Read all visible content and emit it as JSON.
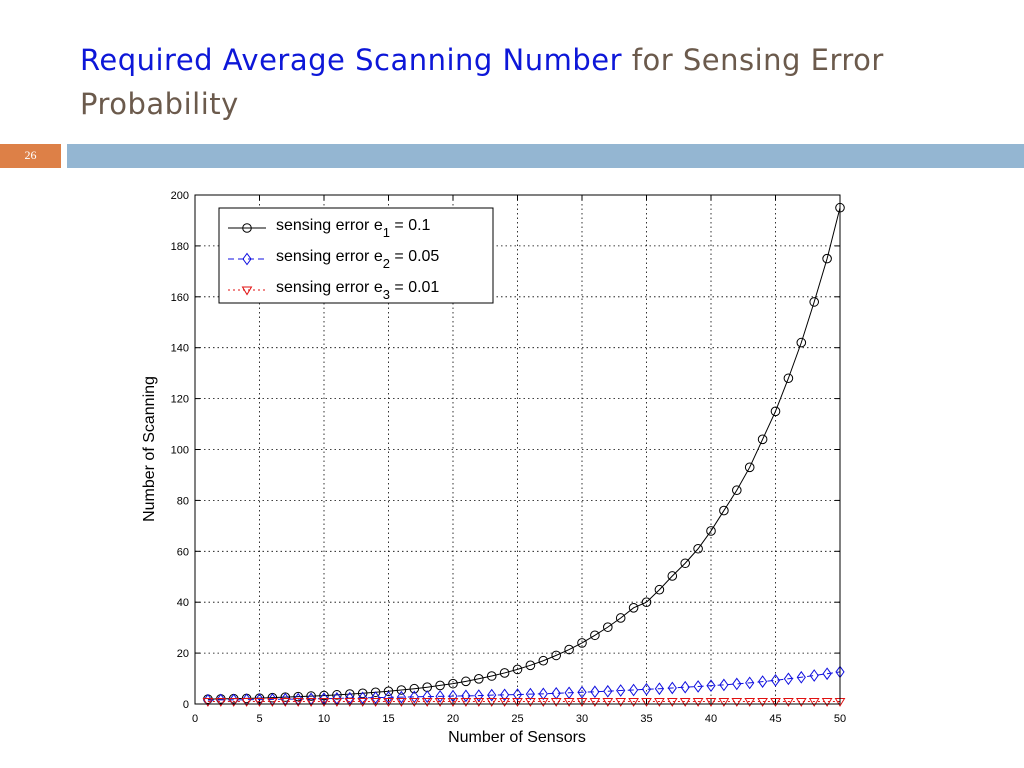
{
  "slide": {
    "title_part1": "Required Average Scanning Number",
    "title_part2": "for Sensing Error Probability",
    "slide_number": "26",
    "colors": {
      "title_blue": "#0d17d8",
      "title_gray": "#6b5a4c",
      "number_box": "#dd8047",
      "accent_bar": "#94b6d2"
    }
  },
  "chart_data": {
    "type": "line",
    "title": "",
    "xlabel": "Number of Sensors",
    "ylabel": "Number of Scanning",
    "xlim": [
      0,
      50
    ],
    "ylim": [
      0,
      200
    ],
    "xticks": [
      0,
      5,
      10,
      15,
      20,
      25,
      30,
      35,
      40,
      45,
      50
    ],
    "yticks": [
      0,
      20,
      40,
      60,
      80,
      100,
      120,
      140,
      160,
      180,
      200
    ],
    "grid": true,
    "legend_position": "top-left",
    "x": [
      1,
      2,
      3,
      4,
      5,
      6,
      7,
      8,
      9,
      10,
      11,
      12,
      13,
      14,
      15,
      16,
      17,
      18,
      19,
      20,
      21,
      22,
      23,
      24,
      25,
      26,
      27,
      28,
      29,
      30,
      31,
      32,
      33,
      34,
      35,
      36,
      37,
      38,
      39,
      40,
      41,
      42,
      43,
      44,
      45,
      46,
      47,
      48,
      49,
      50
    ],
    "series": [
      {
        "name": "sensing error e1 = 0.1",
        "label_prefix": "sensing error e",
        "label_sub": "1",
        "label_suffix": " = 0.1",
        "color": "#000000",
        "marker": "circle",
        "dash": "",
        "values": [
          1.9,
          2.0,
          2.1,
          2.2,
          2.3,
          2.5,
          2.7,
          2.9,
          3.1,
          3.3,
          3.6,
          3.9,
          4.2,
          4.6,
          5.0,
          5.5,
          6.0,
          6.6,
          7.3,
          8.0,
          8.9,
          9.9,
          11.0,
          12.2,
          13.6,
          15.2,
          17.0,
          19.1,
          21.4,
          24.0,
          27.0,
          30.2,
          33.8,
          37.8,
          40.0,
          44.9,
          50.3,
          55.3,
          61.0,
          68.0,
          76.0,
          84.0,
          93.0,
          104.0,
          115.0,
          128.0,
          142.0,
          158.0,
          175.0,
          195.0
        ]
      },
      {
        "name": "sensing error e2 = 0.05",
        "label_prefix": "sensing error e",
        "label_sub": "2",
        "label_suffix": " = 0.05",
        "color": "#1010e0",
        "marker": "diamond",
        "dash": "6,4",
        "values": [
          1.5,
          1.6,
          1.6,
          1.7,
          1.7,
          1.8,
          1.9,
          1.9,
          2.0,
          2.1,
          2.2,
          2.3,
          2.4,
          2.5,
          2.6,
          2.7,
          2.8,
          2.9,
          3.0,
          3.1,
          3.2,
          3.3,
          3.5,
          3.6,
          3.7,
          3.9,
          4.0,
          4.2,
          4.4,
          4.6,
          4.8,
          5.0,
          5.3,
          5.5,
          5.8,
          6.0,
          6.3,
          6.6,
          6.9,
          7.2,
          7.5,
          7.9,
          8.3,
          8.8,
          9.3,
          9.9,
          10.5,
          11.2,
          11.9,
          12.6
        ]
      },
      {
        "name": "sensing error e3 = 0.01",
        "label_prefix": "sensing error e",
        "label_sub": "3",
        "label_suffix": " = 0.01",
        "color": "#e01010",
        "marker": "triangle-down",
        "dash": "2,3",
        "values": [
          1.0,
          1.0,
          1.0,
          1.0,
          1.0,
          1.0,
          1.0,
          1.0,
          1.0,
          1.0,
          1.0,
          1.0,
          1.0,
          1.0,
          1.0,
          1.0,
          1.0,
          1.0,
          1.0,
          1.0,
          1.0,
          1.0,
          1.0,
          1.0,
          1.0,
          1.0,
          1.0,
          1.0,
          1.0,
          1.0,
          1.0,
          1.0,
          1.0,
          1.0,
          1.0,
          1.0,
          1.0,
          1.0,
          1.0,
          1.0,
          1.0,
          1.0,
          1.0,
          1.0,
          1.0,
          1.0,
          1.0,
          1.0,
          1.0,
          1.0
        ]
      }
    ]
  }
}
